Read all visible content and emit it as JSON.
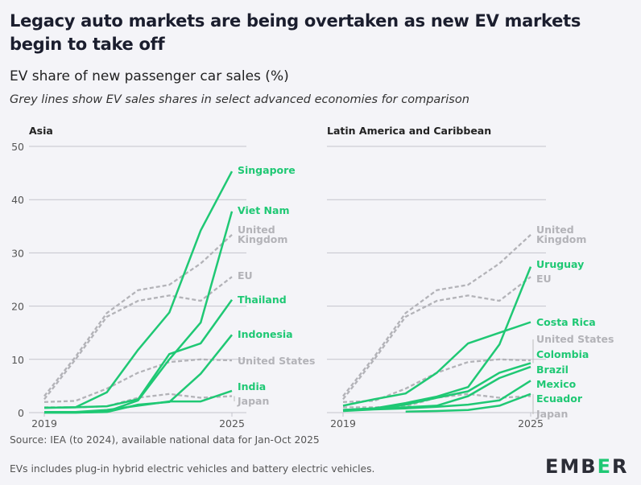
{
  "title": "Legacy auto markets are being overtaken as new EV markets begin to take off",
  "subtitle": "EV share of new passenger car sales (%)",
  "note": "Grey lines show EV sales shares in select advanced economies for comparison",
  "footer": {
    "source": "Source: IEA (to 2024), available national data for Jan-Oct 2025",
    "definition": "EVs includes plug-in hybrid electric vehicles and battery electric vehicles."
  },
  "logo": "EMBER",
  "colors": {
    "highlight": "#1fc874",
    "comparison": "#b3b3b8",
    "grid": "#c4c4cc",
    "text": "#1b1e2e"
  },
  "chart_data": [
    {
      "type": "line",
      "title": "Asia",
      "x": [
        2019,
        2020,
        2021,
        2022,
        2023,
        2024,
        2025
      ],
      "x_tick_labels": [
        "2019",
        "2025"
      ],
      "ylim": [
        0,
        50
      ],
      "y_ticks": [
        0,
        10,
        20,
        30,
        40,
        50
      ],
      "grid": true,
      "series": [
        {
          "name": "Singapore",
          "style": "highlight",
          "values": [
            0.9,
            1.0,
            3.8,
            11.8,
            18.8,
            34.2,
            45.3
          ]
        },
        {
          "name": "Viet Nam",
          "style": "highlight",
          "values": [
            0,
            0,
            0.2,
            2.3,
            10.0,
            16.9,
            37.8
          ]
        },
        {
          "name": "Thailand",
          "style": "highlight",
          "values": [
            0.9,
            1.0,
            1.2,
            2.5,
            11.0,
            13.0,
            21.2
          ]
        },
        {
          "name": "Indonesia",
          "style": "highlight",
          "values": [
            0,
            0,
            0.1,
            1.5,
            2.0,
            7.3,
            14.6
          ]
        },
        {
          "name": "India",
          "style": "highlight",
          "values": [
            0.1,
            0.1,
            0.5,
            1.3,
            2.1,
            2.1,
            4.1
          ]
        },
        {
          "name": "United Kingdom",
          "style": "comparison",
          "values": [
            3.1,
            10.5,
            18.7,
            23.0,
            24.0,
            28.0,
            33.4
          ]
        },
        {
          "name": "EU",
          "style": "comparison",
          "values": [
            2.5,
            10.0,
            18.0,
            21.0,
            22.0,
            21.0,
            25.5
          ]
        },
        {
          "name": "United States",
          "style": "comparison",
          "values": [
            2.0,
            2.2,
            4.5,
            7.5,
            9.5,
            10.0,
            9.8
          ]
        },
        {
          "name": "Japan",
          "style": "comparison",
          "values": [
            1.0,
            1.0,
            1.2,
            2.8,
            3.5,
            2.8,
            3.1
          ]
        }
      ]
    },
    {
      "type": "line",
      "title": "Latin America and Caribbean",
      "x": [
        2019,
        2020,
        2021,
        2022,
        2023,
        2024,
        2025
      ],
      "x_tick_labels": [
        "2019",
        "2025"
      ],
      "ylim": [
        0,
        50
      ],
      "grid": true,
      "series": [
        {
          "name": "Uruguay",
          "style": "highlight",
          "values": [
            0.5,
            0.8,
            1.8,
            3.0,
            4.8,
            12.8,
            27.4
          ]
        },
        {
          "name": "Costa Rica",
          "style": "highlight",
          "values": [
            1.3,
            2.5,
            3.6,
            7.5,
            13.0,
            15.0,
            17.0
          ]
        },
        {
          "name": "Colombia",
          "style": "highlight",
          "values": [
            0.5,
            0.8,
            1.5,
            2.8,
            4.0,
            7.5,
            9.3
          ]
        },
        {
          "name": "Brazil",
          "style": "highlight",
          "values": [
            0.5,
            0.8,
            1.0,
            1.3,
            3.1,
            6.5,
            8.6
          ]
        },
        {
          "name": "Mexico",
          "style": "highlight",
          "values": [
            0.3,
            0.6,
            0.8,
            1.1,
            1.5,
            2.3,
            6.0
          ]
        },
        {
          "name": "Ecuador",
          "style": "highlight",
          "values": [
            null,
            null,
            0.2,
            0.3,
            0.5,
            1.3,
            3.5
          ]
        },
        {
          "name": "United Kingdom",
          "style": "comparison",
          "values": [
            3.1,
            10.5,
            18.7,
            23.0,
            24.0,
            28.0,
            33.4
          ]
        },
        {
          "name": "EU",
          "style": "comparison",
          "values": [
            2.5,
            10.0,
            18.0,
            21.0,
            22.0,
            21.0,
            25.5
          ]
        },
        {
          "name": "United States",
          "style": "comparison",
          "values": [
            2.0,
            2.2,
            4.5,
            7.5,
            9.5,
            10.0,
            9.8
          ]
        },
        {
          "name": "Japan",
          "style": "comparison",
          "values": [
            1.0,
            1.0,
            1.2,
            2.8,
            3.5,
            2.8,
            3.1
          ]
        }
      ]
    }
  ]
}
